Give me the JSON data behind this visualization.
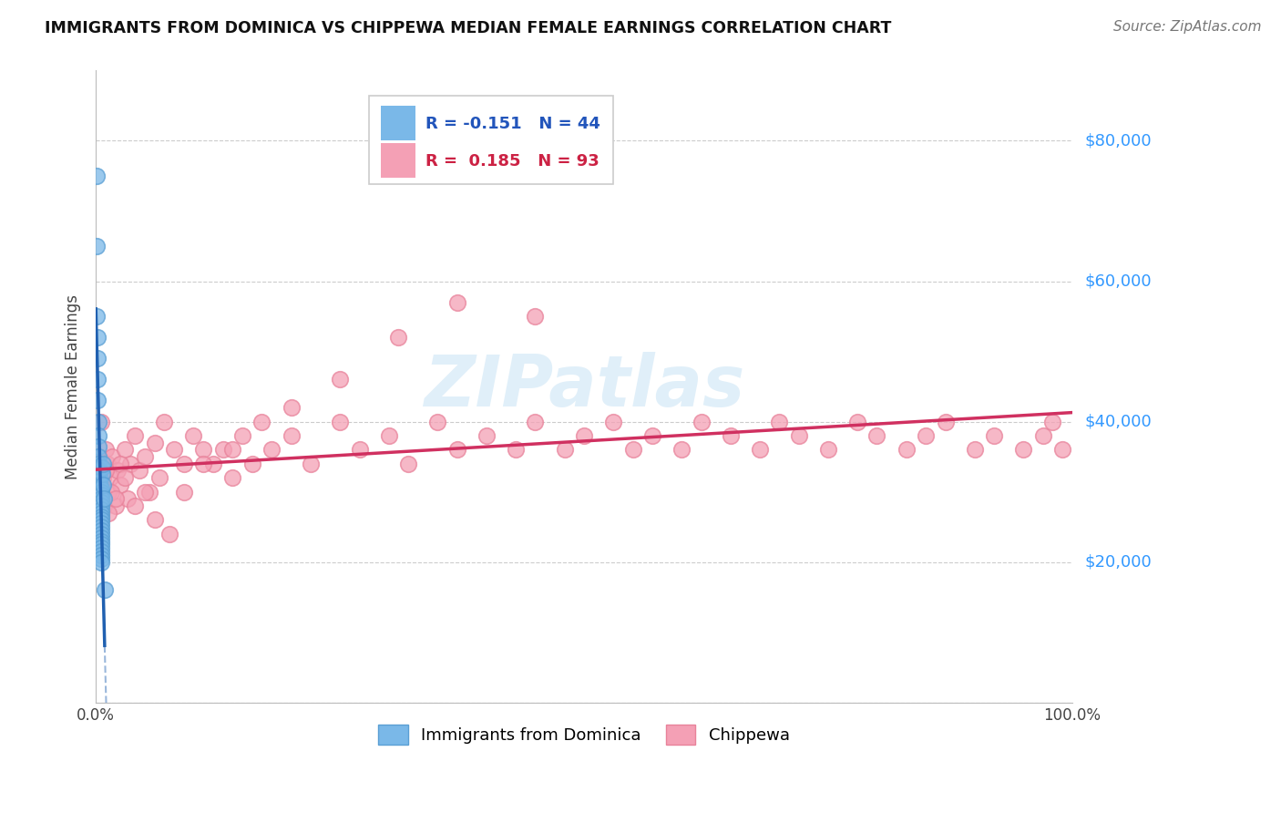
{
  "title": "IMMIGRANTS FROM DOMINICA VS CHIPPEWA MEDIAN FEMALE EARNINGS CORRELATION CHART",
  "source_text": "Source: ZipAtlas.com",
  "ylabel": "Median Female Earnings",
  "xlim": [
    0.0,
    1.0
  ],
  "ylim": [
    0,
    90000
  ],
  "yticks": [
    0,
    20000,
    40000,
    60000,
    80000
  ],
  "ytick_labels": [
    "",
    "$20,000",
    "$40,000",
    "$60,000",
    "$80,000"
  ],
  "xtick_labels": [
    "0.0%",
    "100.0%"
  ],
  "grid_color": "#cccccc",
  "blue_color": "#7ab8e8",
  "pink_color": "#f4a0b5",
  "blue_edge_color": "#5a9fd4",
  "pink_edge_color": "#e8829a",
  "blue_line_color": "#2060b0",
  "pink_line_color": "#d03060",
  "dominica_x": [
    0.001,
    0.001,
    0.001,
    0.002,
    0.002,
    0.002,
    0.002,
    0.003,
    0.003,
    0.003,
    0.003,
    0.003,
    0.004,
    0.004,
    0.004,
    0.004,
    0.005,
    0.005,
    0.005,
    0.005,
    0.005,
    0.005,
    0.005,
    0.005,
    0.005,
    0.005,
    0.005,
    0.005,
    0.005,
    0.005,
    0.005,
    0.005,
    0.005,
    0.005,
    0.005,
    0.005,
    0.005,
    0.005,
    0.006,
    0.006,
    0.007,
    0.007,
    0.008,
    0.009
  ],
  "dominica_y": [
    75000,
    65000,
    55000,
    52000,
    49000,
    46000,
    43000,
    40000,
    38000,
    36500,
    35000,
    34000,
    33000,
    32000,
    31500,
    31000,
    30500,
    30000,
    29500,
    29000,
    28500,
    28000,
    27500,
    27000,
    26500,
    26000,
    25500,
    25000,
    24500,
    24000,
    23500,
    23000,
    22500,
    22000,
    21500,
    21000,
    20500,
    20000,
    33500,
    32500,
    34000,
    31000,
    29000,
    16000
  ],
  "chippewa_x": [
    0.002,
    0.003,
    0.004,
    0.004,
    0.005,
    0.005,
    0.006,
    0.007,
    0.008,
    0.009,
    0.01,
    0.012,
    0.013,
    0.015,
    0.017,
    0.02,
    0.022,
    0.025,
    0.03,
    0.032,
    0.035,
    0.04,
    0.045,
    0.05,
    0.055,
    0.06,
    0.065,
    0.07,
    0.08,
    0.09,
    0.1,
    0.11,
    0.12,
    0.13,
    0.14,
    0.15,
    0.16,
    0.18,
    0.2,
    0.22,
    0.25,
    0.27,
    0.3,
    0.32,
    0.35,
    0.37,
    0.4,
    0.43,
    0.45,
    0.48,
    0.5,
    0.53,
    0.55,
    0.57,
    0.6,
    0.62,
    0.65,
    0.68,
    0.7,
    0.72,
    0.75,
    0.78,
    0.8,
    0.83,
    0.85,
    0.87,
    0.9,
    0.92,
    0.95,
    0.97,
    0.98,
    0.99,
    0.003,
    0.005,
    0.007,
    0.01,
    0.013,
    0.016,
    0.02,
    0.025,
    0.03,
    0.04,
    0.05,
    0.06,
    0.075,
    0.09,
    0.11,
    0.14,
    0.17,
    0.2,
    0.25,
    0.31,
    0.37,
    0.45
  ],
  "chippewa_y": [
    30000,
    28000,
    32000,
    35000,
    27000,
    40000,
    30000,
    32000,
    28000,
    33000,
    36000,
    34000,
    30000,
    32000,
    35000,
    28000,
    33000,
    31000,
    36000,
    29000,
    34000,
    38000,
    33000,
    35000,
    30000,
    37000,
    32000,
    40000,
    36000,
    34000,
    38000,
    36000,
    34000,
    36000,
    32000,
    38000,
    34000,
    36000,
    38000,
    34000,
    40000,
    36000,
    38000,
    34000,
    40000,
    36000,
    38000,
    36000,
    40000,
    36000,
    38000,
    40000,
    36000,
    38000,
    36000,
    40000,
    38000,
    36000,
    40000,
    38000,
    36000,
    40000,
    38000,
    36000,
    38000,
    40000,
    36000,
    38000,
    36000,
    38000,
    40000,
    36000,
    27000,
    31000,
    29000,
    33000,
    27000,
    30000,
    29000,
    34000,
    32000,
    28000,
    30000,
    26000,
    24000,
    30000,
    34000,
    36000,
    40000,
    42000,
    46000,
    52000,
    57000,
    55000
  ]
}
